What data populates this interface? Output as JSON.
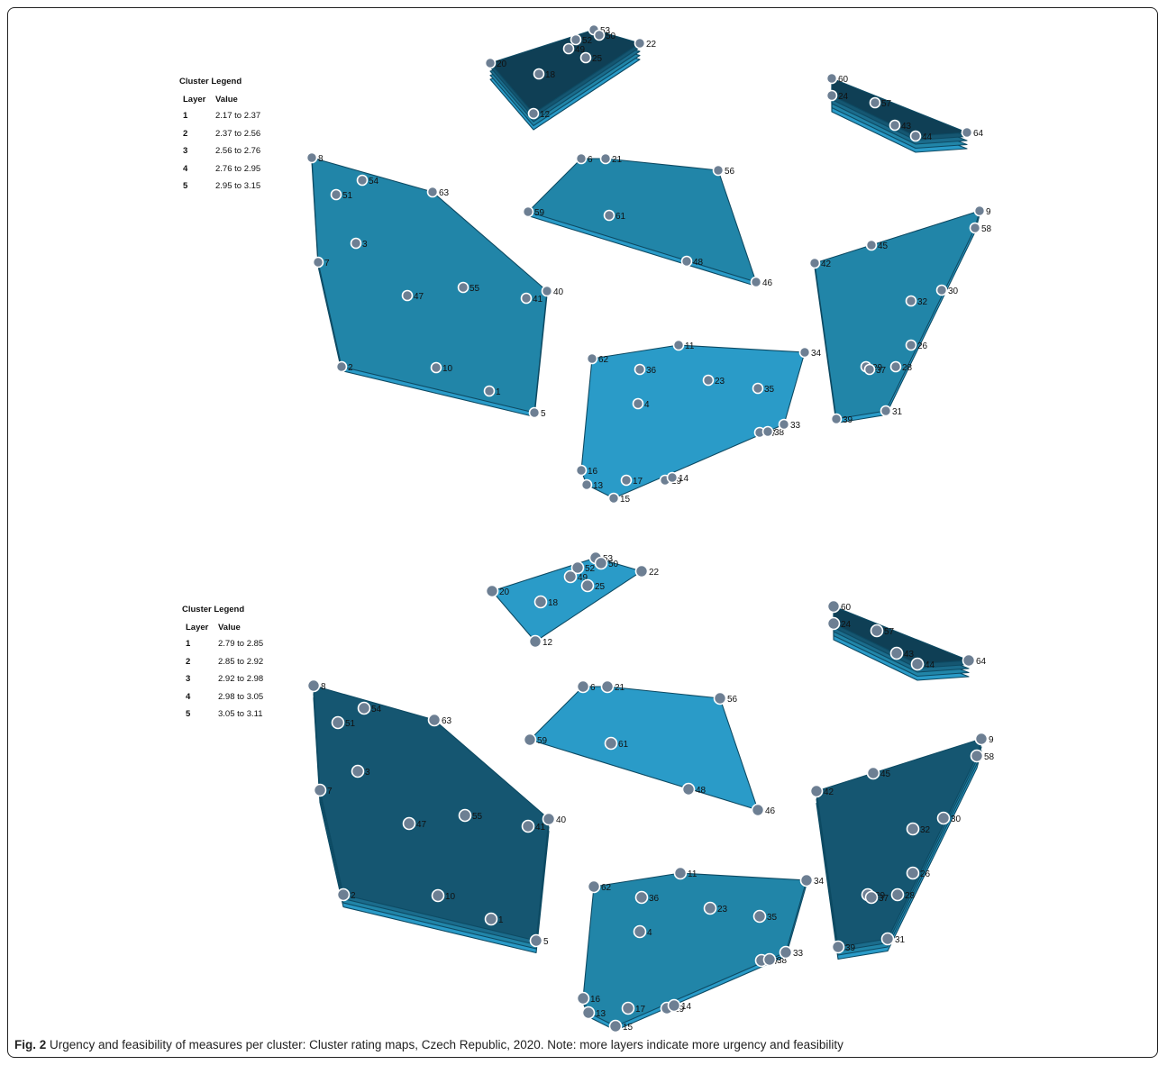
{
  "maps": [
    {
      "legend": {
        "title": "Cluster Legend",
        "headers": [
          "Layer",
          "Value"
        ],
        "rows": [
          {
            "layer": "1",
            "value": "2.17 to 2.37"
          },
          {
            "layer": "2",
            "value": "2.37 to 2.56"
          },
          {
            "layer": "3",
            "value": "2.56 to 2.76"
          },
          {
            "layer": "4",
            "value": "2.76 to 2.95"
          },
          {
            "layer": "5",
            "value": "2.95 to 3.15"
          }
        ]
      },
      "clusters": [
        {
          "name": "top-center",
          "layers": 5,
          "points": [
            "53",
            "50",
            "52",
            "49",
            "25",
            "20",
            "18",
            "12",
            "22"
          ]
        },
        {
          "name": "top-right",
          "layers": 5,
          "points": [
            "60",
            "24",
            "57",
            "43",
            "44",
            "64"
          ]
        },
        {
          "name": "left",
          "layers": 2,
          "points": [
            "8",
            "54",
            "51",
            "63",
            "3",
            "7",
            "47",
            "55",
            "41",
            "40",
            "2",
            "10",
            "1",
            "5"
          ]
        },
        {
          "name": "middle",
          "layers": 2,
          "points": [
            "6",
            "21",
            "56",
            "59",
            "61",
            "48",
            "46"
          ]
        },
        {
          "name": "right",
          "layers": 2,
          "points": [
            "9",
            "58",
            "45",
            "42",
            "30",
            "32",
            "26",
            "29",
            "37",
            "28",
            "39",
            "31"
          ]
        },
        {
          "name": "bottom-center",
          "layers": 1,
          "points": [
            "11",
            "62",
            "34",
            "36",
            "23",
            "35",
            "4",
            "27",
            "38",
            "33",
            "16",
            "13",
            "17",
            "19",
            "14",
            "15"
          ]
        }
      ]
    },
    {
      "legend": {
        "title": "Cluster Legend",
        "headers": [
          "Layer",
          "Value"
        ],
        "rows": [
          {
            "layer": "1",
            "value": "2.79 to 2.85"
          },
          {
            "layer": "2",
            "value": "2.85 to 2.92"
          },
          {
            "layer": "3",
            "value": "2.92 to 2.98"
          },
          {
            "layer": "4",
            "value": "2.98 to 3.05"
          },
          {
            "layer": "5",
            "value": "3.05 to 3.11"
          }
        ]
      },
      "clusters": [
        {
          "name": "top-center",
          "layers": 1,
          "points": [
            "53",
            "50",
            "52",
            "49",
            "25",
            "20",
            "18",
            "12",
            "22"
          ]
        },
        {
          "name": "top-right",
          "layers": 5,
          "points": [
            "60",
            "24",
            "57",
            "43",
            "44",
            "64"
          ]
        },
        {
          "name": "left",
          "layers": 4,
          "points": [
            "8",
            "54",
            "51",
            "63",
            "3",
            "7",
            "47",
            "55",
            "41",
            "40",
            "2",
            "10",
            "1",
            "5"
          ]
        },
        {
          "name": "middle",
          "layers": 1,
          "points": [
            "6",
            "21",
            "56",
            "59",
            "61",
            "48",
            "46"
          ]
        },
        {
          "name": "right",
          "layers": 4,
          "points": [
            "9",
            "58",
            "45",
            "42",
            "30",
            "32",
            "26",
            "29",
            "37",
            "28",
            "39",
            "31"
          ]
        },
        {
          "name": "bottom-center",
          "layers": 2,
          "points": [
            "11",
            "62",
            "34",
            "36",
            "23",
            "35",
            "4",
            "27",
            "38",
            "33",
            "16",
            "13",
            "17",
            "19",
            "14",
            "15"
          ]
        }
      ]
    }
  ],
  "layer_colors": [
    "#2a9bc8",
    "#2185a8",
    "#1b6c8c",
    "#155671",
    "#0f3f55"
  ],
  "caption": {
    "label": "Fig. 2",
    "text": " Urgency and feasibility of measures per cluster: Cluster rating maps, Czech Republic, 2020. Note: more layers indicate more urgency and feasibility"
  }
}
